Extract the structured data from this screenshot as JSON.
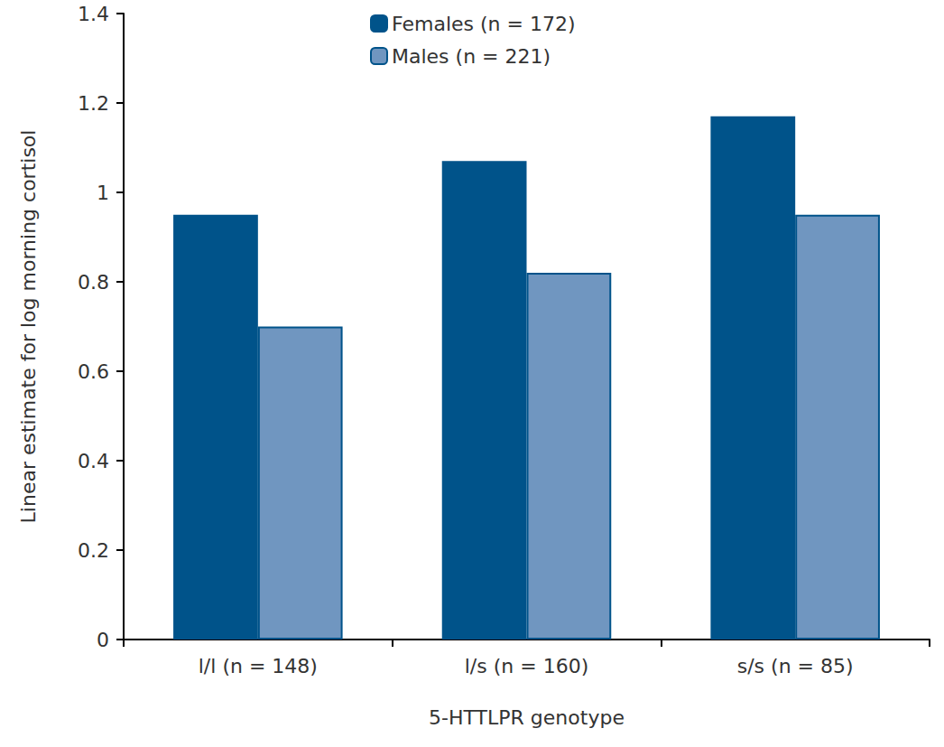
{
  "chart_data": {
    "type": "bar",
    "categories": [
      "l/l (n = 148)",
      "l/s (n = 160)",
      "s/s (n = 85)"
    ],
    "series": [
      {
        "name": "Females (n = 172)",
        "color": "#00538a",
        "values": [
          0.95,
          1.07,
          1.17
        ]
      },
      {
        "name": "Males (n = 221)",
        "color": "#7096c0",
        "values": [
          0.7,
          0.82,
          0.95
        ]
      }
    ],
    "x_label": "5-HTTLPR genotype",
    "y_label": "Linear estimate for log morning cortisol",
    "ylim": [
      0,
      1.4
    ],
    "yticks": [
      0,
      0.2,
      0.4,
      0.6,
      0.8,
      1,
      1.2,
      1.4
    ],
    "grid": false,
    "legend": "top"
  }
}
